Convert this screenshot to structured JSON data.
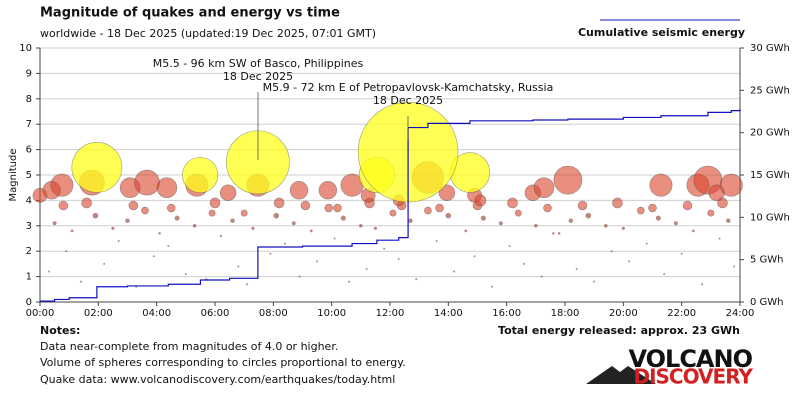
{
  "chart_data": {
    "type": "scatter",
    "title": "Magnitude of quakes and energy vs time",
    "subtitle": "worldwide - 18 Dec 2025 (updated:19 Dec 2025, 07:01 GMT)",
    "y_label": "Magnitude",
    "xlim": [
      0,
      24
    ],
    "xticks": [
      {
        "value": 0,
        "label": "00:00"
      },
      {
        "value": 2,
        "label": "02:00"
      },
      {
        "value": 4,
        "label": "04:00"
      },
      {
        "value": 6,
        "label": "06:00"
      },
      {
        "value": 8,
        "label": "08:00"
      },
      {
        "value": 10,
        "label": "10:00"
      },
      {
        "value": 12,
        "label": "12:00"
      },
      {
        "value": 14,
        "label": "14:00"
      },
      {
        "value": 16,
        "label": "16:00"
      },
      {
        "value": 18,
        "label": "18:00"
      },
      {
        "value": 20,
        "label": "20:00"
      },
      {
        "value": 22,
        "label": "22:00"
      },
      {
        "value": 24,
        "label": "24:00"
      }
    ],
    "ylim": [
      0,
      10
    ],
    "yticks": [
      0,
      1,
      2,
      3,
      4,
      5,
      6,
      7,
      8,
      9,
      10
    ],
    "y2lim": [
      0,
      30
    ],
    "y2ticks": [
      {
        "value": 0,
        "label": "0 GWh"
      },
      {
        "value": 5,
        "label": "5 GWh"
      },
      {
        "value": 10,
        "label": "10 GWh"
      },
      {
        "value": 15,
        "label": "15 GWh"
      },
      {
        "value": 20,
        "label": "20 GWh"
      },
      {
        "value": 25,
        "label": "25 GWh"
      },
      {
        "value": 30,
        "label": "30 GWh"
      }
    ],
    "grid": true,
    "quake_colors": [
      "#8b3a2a",
      "#d9442b",
      "#ffff1a"
    ],
    "quakes": {
      "x": [
        0.3,
        0.9,
        1.4,
        2.2,
        2.7,
        3.3,
        3.9,
        4.4,
        5.0,
        5.7,
        6.2,
        6.8,
        7.1,
        7.9,
        8.4,
        8.9,
        9.5,
        10.1,
        10.6,
        11.2,
        11.8,
        12.3,
        12.9,
        13.6,
        14.2,
        14.9,
        15.5,
        16.1,
        16.6,
        17.2,
        17.8,
        18.4,
        19.0,
        19.6,
        20.2,
        20.8,
        21.4,
        22.0,
        22.7,
        23.3,
        23.8,
        0.5,
        1.1,
        1.9,
        2.5,
        3.0,
        3.6,
        4.1,
        4.7,
        5.3,
        5.9,
        6.6,
        7.3,
        8.1,
        8.7,
        9.3,
        9.9,
        10.4,
        11.0,
        11.5,
        12.1,
        12.7,
        13.3,
        14.0,
        14.6,
        15.2,
        15.8,
        16.4,
        17.0,
        17.6,
        18.2,
        18.8,
        19.4,
        20.0,
        20.6,
        21.2,
        21.8,
        22.4,
        23.0,
        23.6,
        0.8,
        1.6,
        3.2,
        4.5,
        6.0,
        7.0,
        8.2,
        9.1,
        10.2,
        11.3,
        12.4,
        13.7,
        15.0,
        16.2,
        17.4,
        18.6,
        19.8,
        21.0,
        22.2,
        23.4,
        0.0,
        0.4,
        0.75,
        1.78,
        3.09,
        3.67,
        4.35,
        5.38,
        6.45,
        7.47,
        8.88,
        9.87,
        10.7,
        11.25,
        12.3,
        13.3,
        13.95,
        14.9,
        15.1,
        16.9,
        17.28,
        18.1,
        21.29,
        22.56,
        22.9,
        23.2,
        23.7,
        5.49,
        14.74,
        11.55,
        1.95,
        7.47,
        12.62
      ],
      "values": [
        1.2,
        2.0,
        0.8,
        1.5,
        2.4,
        0.6,
        1.8,
        2.2,
        1.1,
        0.9,
        2.6,
        1.4,
        0.7,
        1.9,
        2.3,
        1.0,
        1.6,
        2.5,
        0.8,
        1.3,
        2.1,
        1.7,
        0.9,
        2.4,
        1.2,
        1.8,
        0.6,
        2.2,
        1.5,
        1.0,
        2.7,
        1.3,
        0.8,
        2.0,
        1.6,
        2.3,
        1.1,
        1.9,
        0.7,
        2.5,
        1.4,
        3.1,
        2.8,
        3.4,
        2.9,
        3.2,
        3.6,
        2.7,
        3.3,
        3.0,
        3.5,
        3.2,
        2.9,
        3.4,
        3.1,
        2.8,
        3.7,
        3.3,
        3.0,
        2.9,
        3.5,
        3.2,
        3.6,
        3.4,
        2.8,
        3.3,
        3.1,
        3.5,
        3.0,
        2.7,
        3.2,
        3.4,
        3.0,
        2.9,
        3.6,
        3.3,
        3.1,
        2.8,
        3.5,
        3.2,
        3.8,
        3.9,
        3.8,
        3.7,
        3.9,
        3.5,
        3.9,
        3.8,
        3.7,
        3.9,
        3.8,
        3.7,
        3.8,
        3.9,
        3.7,
        3.8,
        3.9,
        3.7,
        3.8,
        3.9,
        4.2,
        4.4,
        4.6,
        4.7,
        4.5,
        4.7,
        4.5,
        4.6,
        4.3,
        4.6,
        4.4,
        4.4,
        4.6,
        4.2,
        4.0,
        4.9,
        4.3,
        4.2,
        4.0,
        4.3,
        4.5,
        4.8,
        4.6,
        4.6,
        4.8,
        4.3,
        4.6,
        5.0,
        5.1,
        5.0,
        5.3,
        5.5,
        5.9
      ]
    },
    "series": [
      {
        "name": "Cumulative seismic energy",
        "color": "#1010c0",
        "axis": "y2",
        "x": [
          0,
          0.5,
          1.0,
          1.95,
          3.0,
          4.4,
          5.5,
          6.5,
          7.47,
          9.0,
          10.7,
          11.55,
          12.3,
          12.62,
          13.3,
          14.74,
          16.9,
          18.1,
          20.0,
          21.29,
          22.9,
          23.7,
          24
        ],
        "values": [
          0.1,
          0.3,
          0.5,
          1.8,
          1.9,
          2.1,
          2.6,
          2.8,
          6.5,
          6.6,
          6.9,
          7.3,
          7.6,
          20.6,
          21.1,
          21.4,
          21.5,
          21.6,
          21.8,
          22.0,
          22.4,
          22.6,
          22.8
        ]
      }
    ],
    "annotations": [
      {
        "lines": [
          "M5.5 - 96 km SW of Basco, Philippines",
          "18 Dec 2025"
        ]
      },
      {
        "lines": [
          "M5.9 - 72 km E of Petropavlovsk-Kamchatsky, Russia",
          "18 Dec 2025"
        ]
      }
    ],
    "total_energy": "Total energy released: approx. 23 GWh",
    "notes_title": "Notes:",
    "notes": [
      "Data near-complete from magnitudes of 4.0 or higher.",
      "Volume of spheres corresponding to circles proportional to energy.",
      "Quake data: www.volcanodiscovery.com/earthquakes/today.html"
    ],
    "logo": [
      "VOLCANO",
      "DISCOVERY"
    ]
  }
}
